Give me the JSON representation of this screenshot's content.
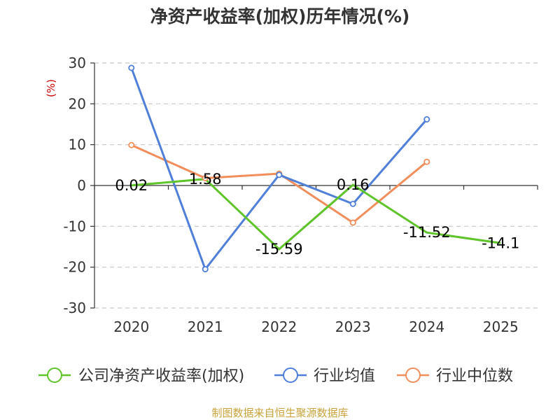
{
  "title": "净资产收益率(加权)历年情况(%)",
  "source": "制图数据来自恒生聚源数据库",
  "chart_data": {
    "type": "line",
    "title": "净资产收益率(加权)历年情况(%)",
    "ylabel": "(%)",
    "xlabel": "",
    "categories": [
      "2020",
      "2021",
      "2022",
      "2023",
      "2024",
      "2025"
    ],
    "ylim": [
      -30,
      30
    ],
    "yticks": [
      30,
      20,
      10,
      0,
      -10,
      -20,
      -30
    ],
    "grid": true,
    "legend_position": "bottom",
    "series": [
      {
        "name": "公司净资产收益率(加权)",
        "color": "#5ec42a",
        "values": [
          0.02,
          1.58,
          -15.59,
          0.16,
          -11.52,
          -14.1
        ],
        "labels": [
          "0.02",
          "1.58",
          "-15.59",
          "0.16",
          "-11.52",
          "-14.1"
        ]
      },
      {
        "name": "行业均值",
        "color": "#4f7fd9",
        "values": [
          28.8,
          -20.5,
          2.6,
          -4.5,
          16.2,
          null
        ]
      },
      {
        "name": "行业中位数",
        "color": "#f28e5c",
        "values": [
          9.9,
          1.8,
          2.9,
          -9.1,
          5.8,
          null
        ]
      }
    ]
  }
}
